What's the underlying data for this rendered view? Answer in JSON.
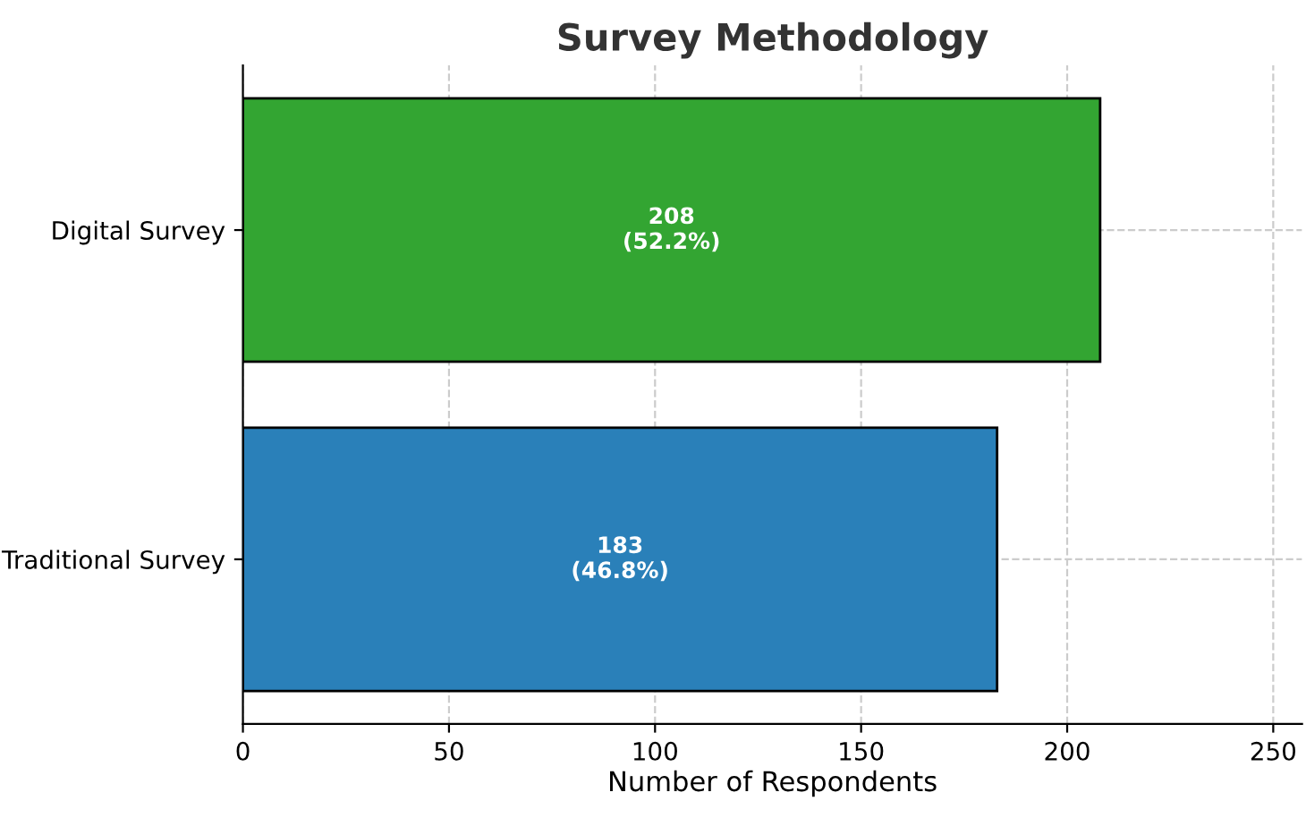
{
  "chart_data": {
    "type": "bar",
    "orientation": "horizontal",
    "title": "Survey Methodology",
    "xlabel": "Number of Respondents",
    "categories": [
      "Digital Survey",
      "Traditional Survey"
    ],
    "values": [
      208,
      183
    ],
    "colors": [
      "#33a532",
      "#2a80b9"
    ],
    "value_labels": [
      "208\n(52.2%)",
      "183\n(46.8%)"
    ],
    "xlim": [
      0,
      257
    ],
    "xticks": [
      0,
      50,
      100,
      150,
      200,
      250
    ],
    "grid": true
  }
}
